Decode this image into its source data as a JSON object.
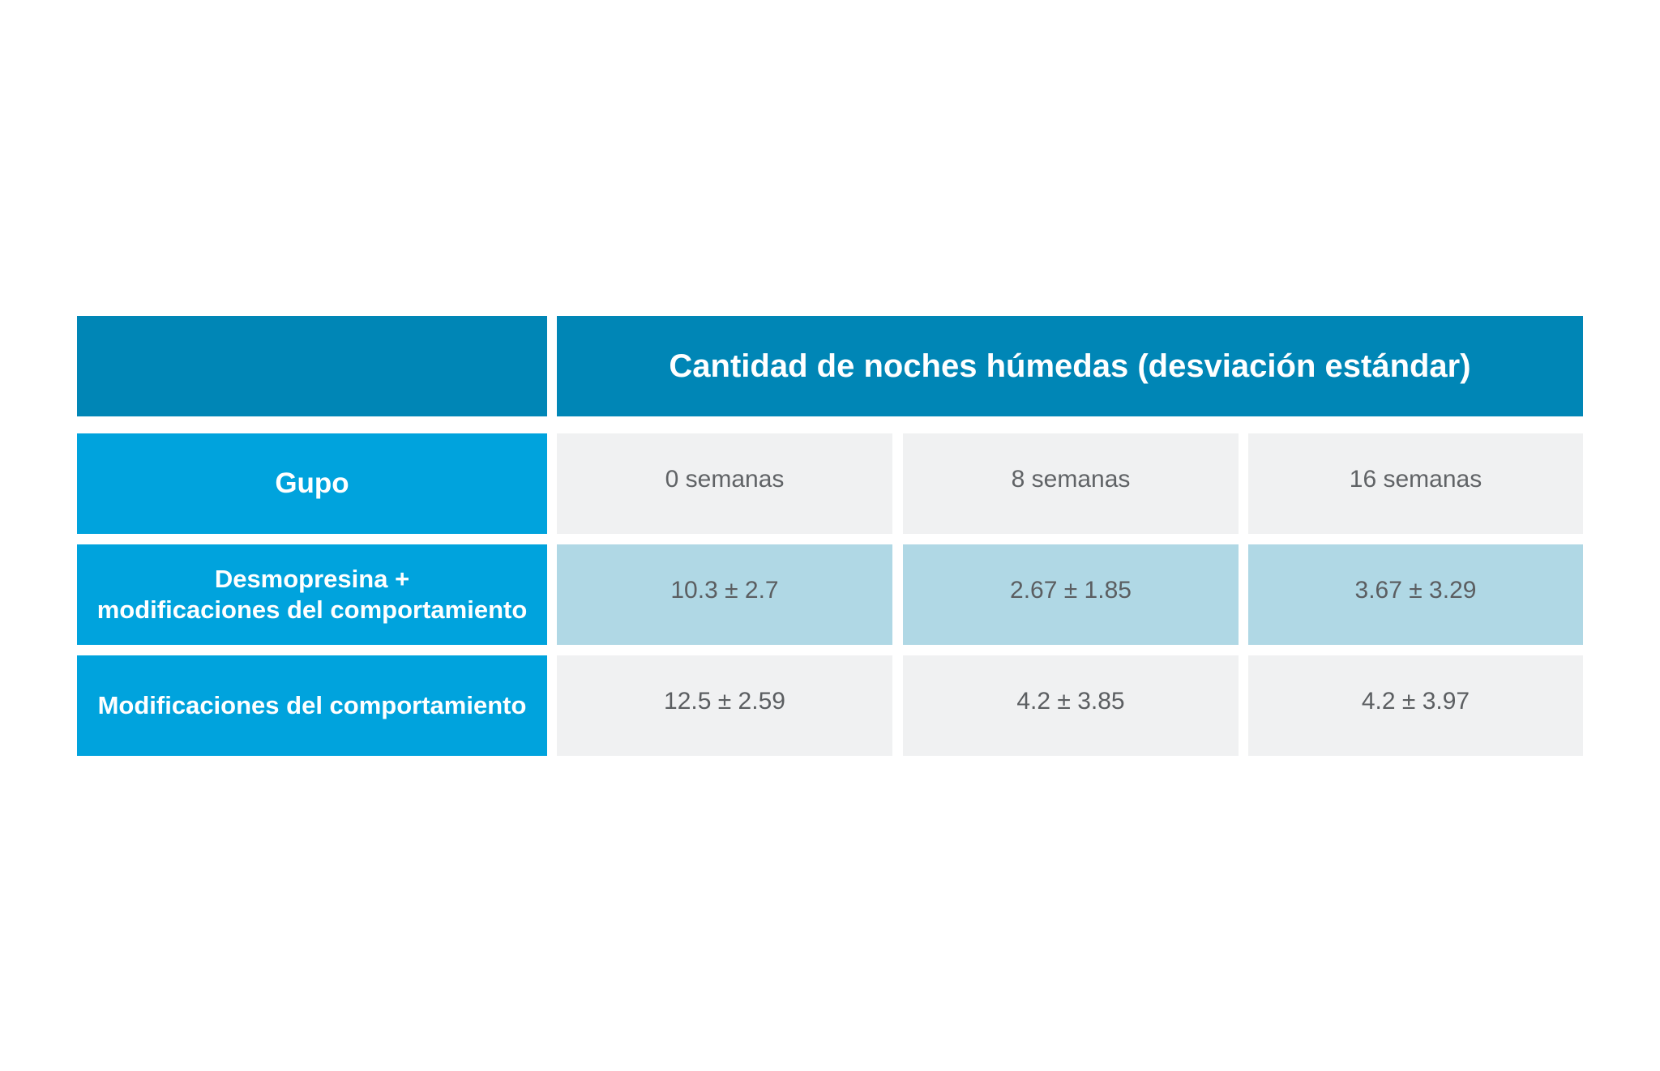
{
  "table": {
    "title": "Cantidad de noches húmedas (desviación estándar)",
    "group_header": "Gupo",
    "columns": [
      "0 semanas",
      "8 semanas",
      "16 semanas"
    ],
    "rows": [
      {
        "label": "Desmopresina +\nmodificaciones del comportamiento",
        "values": [
          "10.3 ± 2.7",
          "2.67 ± 1.85",
          "3.67 ± 3.29"
        ],
        "highlighted": true
      },
      {
        "label": "Modificaciones del comportamiento",
        "values": [
          "12.5 ± 2.59",
          "4.2 ± 3.85",
          "4.2 ± 3.97"
        ],
        "highlighted": false
      }
    ]
  },
  "colors": {
    "header_dark": "#0086b6",
    "header_blue": "#00a3dd",
    "cell_grey": "#f0f1f2",
    "cell_highlight": "#b0d8e5",
    "value_text": "#5b5e61"
  }
}
